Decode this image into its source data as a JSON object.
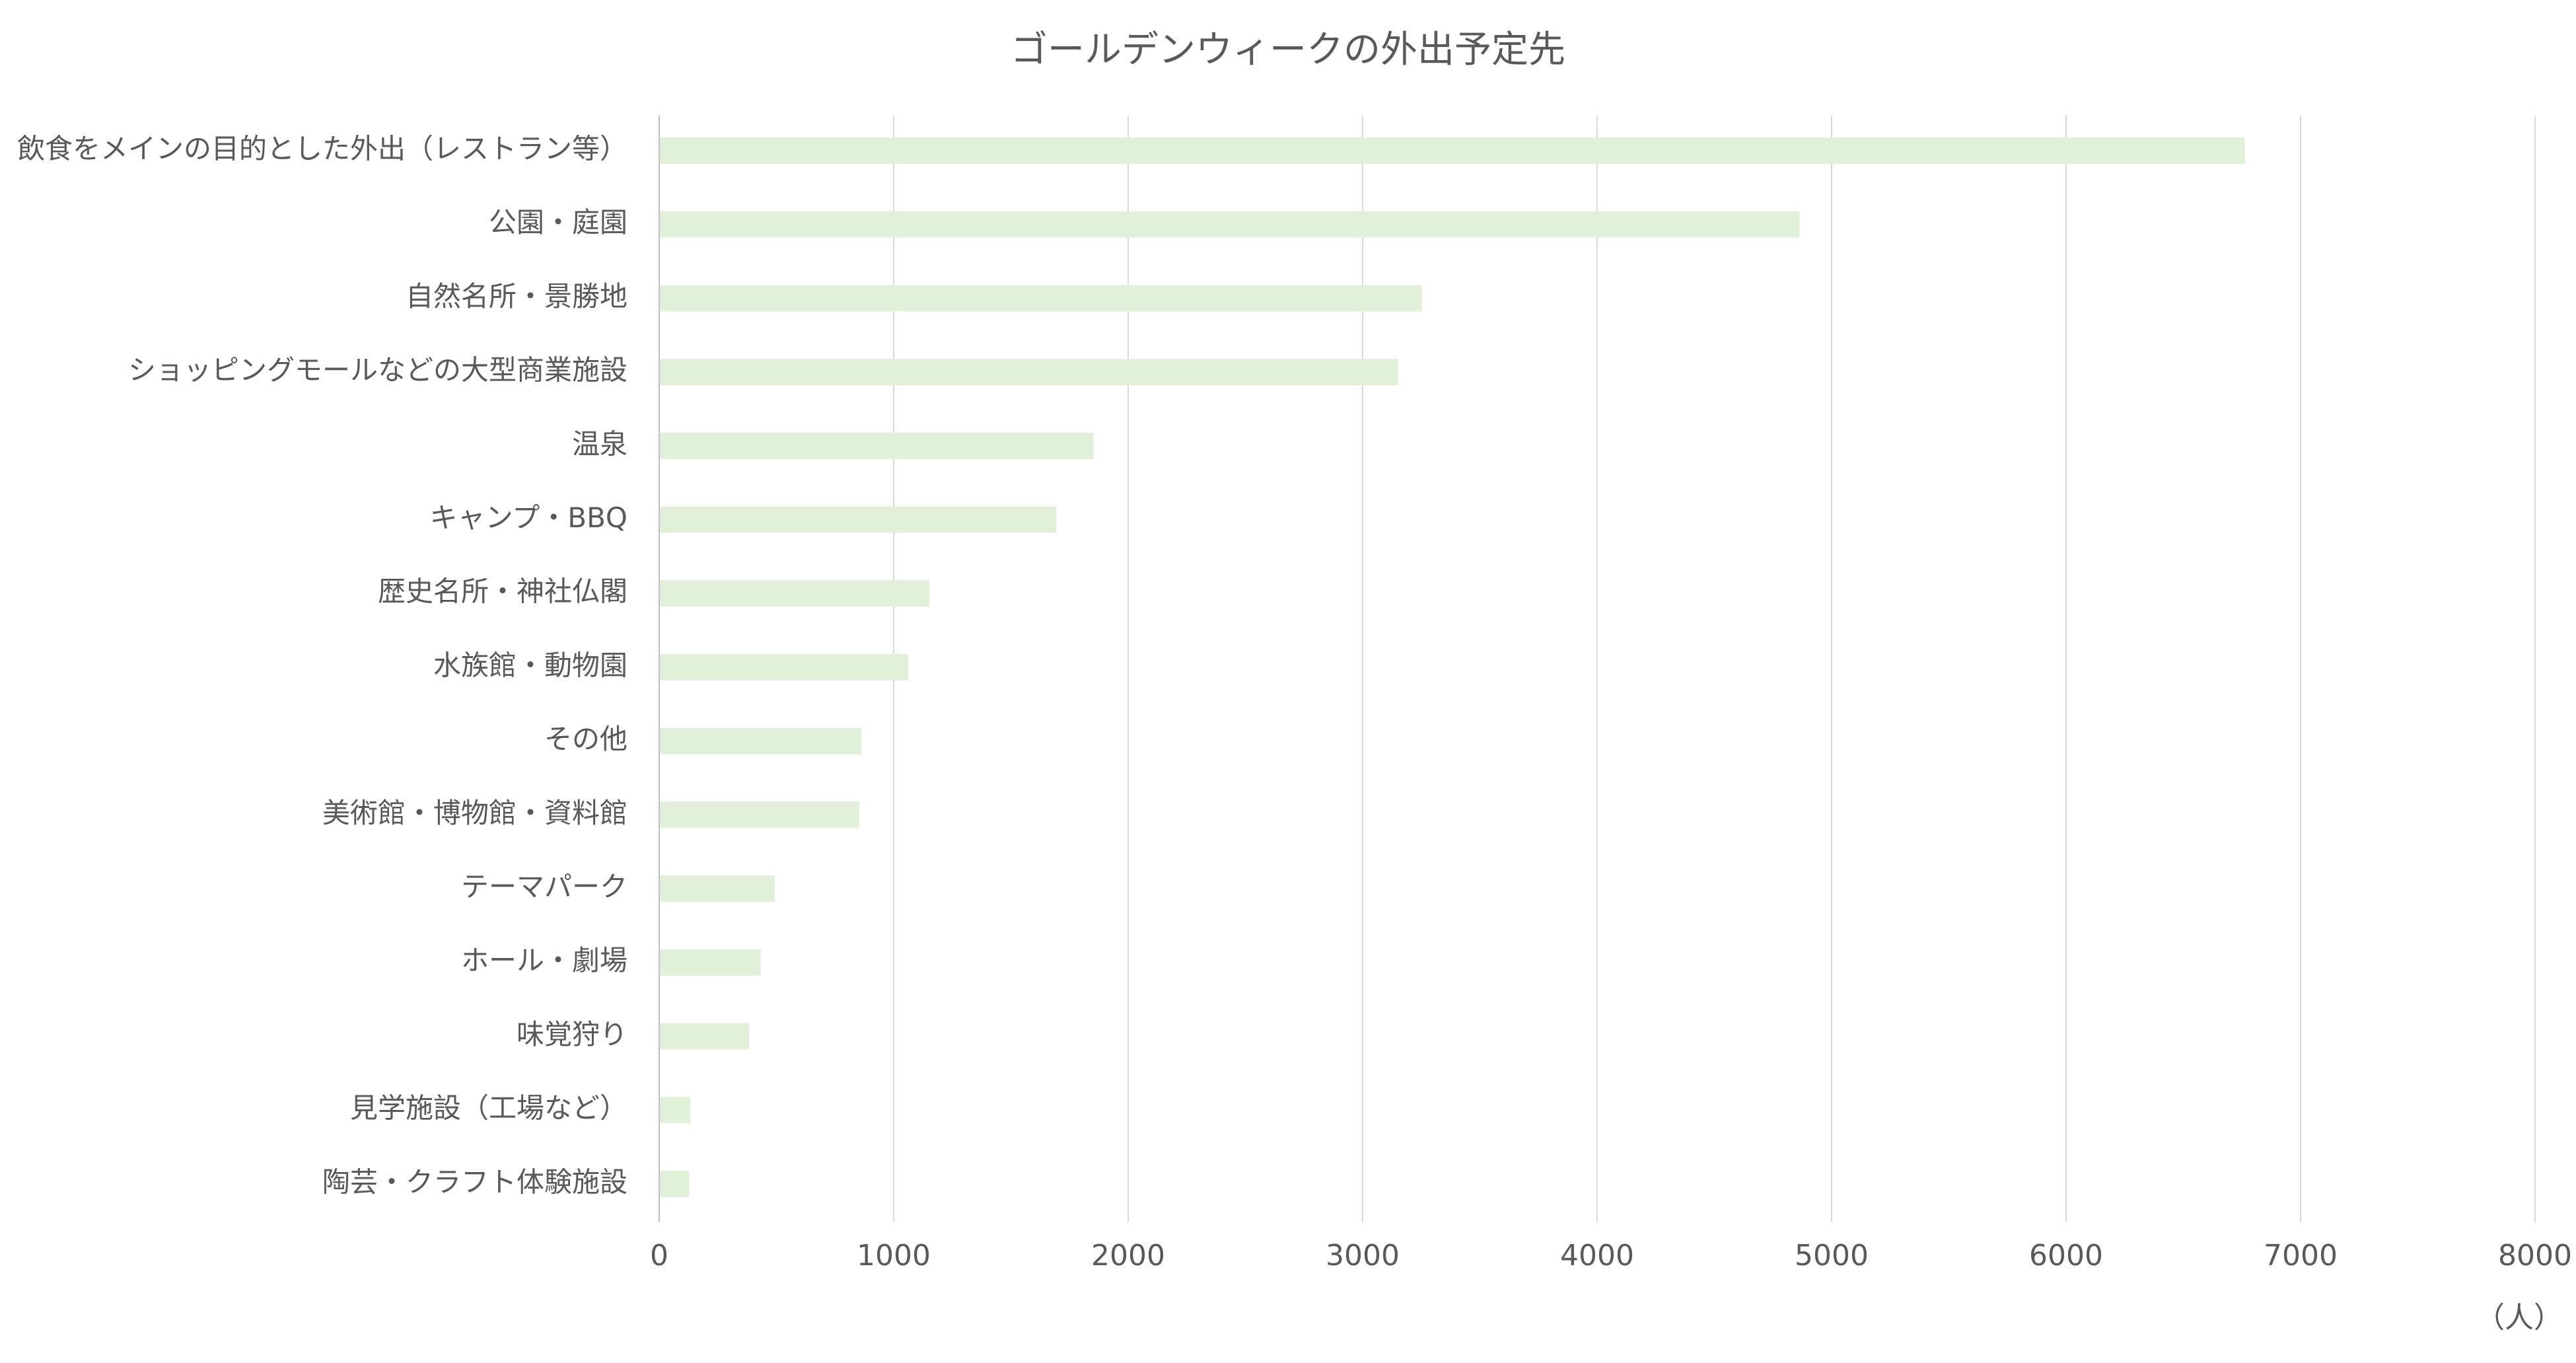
{
  "chart_data": {
    "type": "bar",
    "orientation": "horizontal",
    "title": "ゴールデンウィークの外出予定先",
    "unit_label": "（人）",
    "categories": [
      "飲食をメインの目的とした外出（レストラン等）",
      "公園・庭園",
      "自然名所・景勝地",
      "ショッピングモールなどの大型商業施設",
      "温泉",
      "キャンプ・BBQ",
      "歴史名所・神社仏閣",
      "水族館・動物園",
      "その他",
      "美術館・博物館・資料館",
      "テーマパーク",
      "ホール・劇場",
      "味覚狩り",
      "見学施設（工場など）",
      "陶芸・クラフト体験施設"
    ],
    "values": [
      6760,
      4860,
      3250,
      3150,
      1850,
      1690,
      1150,
      1060,
      860,
      850,
      490,
      430,
      380,
      130,
      125
    ],
    "xlim": [
      0,
      8000
    ],
    "ticks": [
      0,
      1000,
      2000,
      3000,
      4000,
      5000,
      6000,
      7000,
      8000
    ],
    "grid": true,
    "legend": "none",
    "bar_color": "#e2efd9",
    "grid_color": "#d9d9d9",
    "axis_color": "#bfbfbf",
    "text_color": "#595959"
  }
}
